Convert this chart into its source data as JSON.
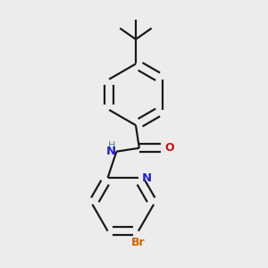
{
  "background_color": "#ececec",
  "bond_color": "#1a1a1a",
  "nitrogen_color": "#2222cc",
  "oxygen_color": "#cc1111",
  "bromine_color": "#cc6600",
  "line_width": 1.6,
  "figsize": [
    3.0,
    3.0
  ],
  "dpi": 100,
  "xlim": [
    0,
    3
  ],
  "ylim": [
    0,
    3
  ]
}
